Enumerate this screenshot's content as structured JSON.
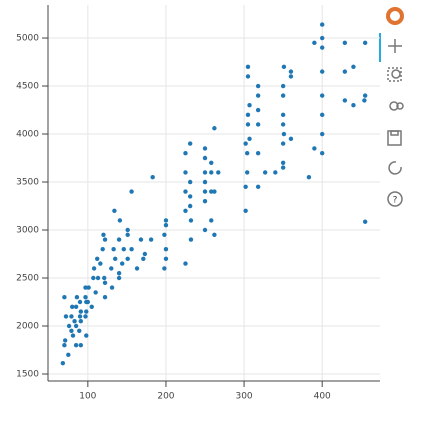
{
  "chart_data": {
    "type": "scatter",
    "color": "#1f77b4",
    "grid": true,
    "xlim": [
      49,
      474
    ],
    "ylim": [
      1427,
      5344
    ],
    "xticks": [
      100,
      200,
      300,
      400
    ],
    "yticks": [
      1500,
      2000,
      2500,
      3000,
      3500,
      4000,
      4500,
      5000
    ],
    "x": [
      68,
      70,
      70,
      71,
      72,
      75,
      76,
      79,
      79,
      80,
      81,
      83,
      85,
      85,
      85,
      86,
      89,
      90,
      90,
      91,
      91,
      97,
      97,
      97,
      98,
      98,
      100,
      101,
      105,
      107,
      108,
      110,
      112,
      113,
      116,
      119,
      120,
      121,
      122,
      122,
      130,
      131,
      133,
      134,
      135,
      140,
      140,
      141,
      144,
      146,
      151,
      151,
      151,
      156,
      156,
      163,
      168,
      171,
      173,
      181,
      183,
      198,
      198,
      200,
      200,
      200,
      200,
      225,
      225,
      225,
      225,
      225,
      231,
      231,
      231,
      232,
      232,
      250,
      250,
      250,
      250,
      250,
      250,
      258,
      258,
      258,
      258,
      262,
      262,
      262,
      267,
      302,
      302,
      302,
      304,
      304,
      305,
      305,
      305,
      307,
      307,
      318,
      318,
      318,
      318,
      318,
      327,
      340,
      350,
      350,
      350,
      350,
      350,
      350,
      351,
      351,
      360,
      360,
      360,
      383,
      390,
      390,
      400,
      400,
      400,
      400,
      400,
      400,
      400,
      429,
      429,
      440,
      454,
      455,
      455,
      455,
      440,
      429,
      400,
      350,
      318,
      305,
      231,
      250,
      140,
      122,
      98,
      91
    ],
    "values": [
      1613,
      1800,
      2300,
      1850,
      2100,
      1700,
      2000,
      1950,
      2100,
      2200,
      1900,
      2050,
      1800,
      2000,
      2200,
      2300,
      1950,
      2100,
      2250,
      1800,
      2050,
      2100,
      2300,
      2400,
      1900,
      2150,
      2250,
      2400,
      2200,
      2500,
      2600,
      2350,
      2700,
      2500,
      2650,
      2800,
      2950,
      2500,
      2300,
      2900,
      2600,
      2400,
      2800,
      3200,
      2700,
      2900,
      2500,
      3100,
      2650,
      2800,
      2700,
      2950,
      3000,
      2800,
      3400,
      2600,
      2900,
      2700,
      2750,
      2900,
      3550,
      2600,
      2950,
      2800,
      3100,
      3050,
      2700,
      2650,
      3200,
      3400,
      3600,
      3800,
      3250,
      3500,
      3900,
      2900,
      3100,
      3000,
      3300,
      3400,
      3600,
      3750,
      3850,
      3100,
      3400,
      3600,
      3700,
      2950,
      3400,
      4060,
      3600,
      3200,
      3450,
      3900,
      3600,
      3800,
      4100,
      4200,
      4600,
      4300,
      3950,
      3450,
      3800,
      4100,
      4400,
      4500,
      3600,
      3600,
      3700,
      3900,
      4100,
      4200,
      4400,
      4500,
      4700,
      4000,
      4600,
      3950,
      4650,
      3550,
      3850,
      4950,
      4000,
      4200,
      4400,
      4650,
      4900,
      5000,
      5140,
      4950,
      4350,
      4300,
      4350,
      4950,
      3086,
      4400,
      4700,
      4650,
      3800,
      3650,
      4250,
      4700,
      3350,
      3500,
      2550,
      2450,
      2250,
      2150
    ]
  }
}
